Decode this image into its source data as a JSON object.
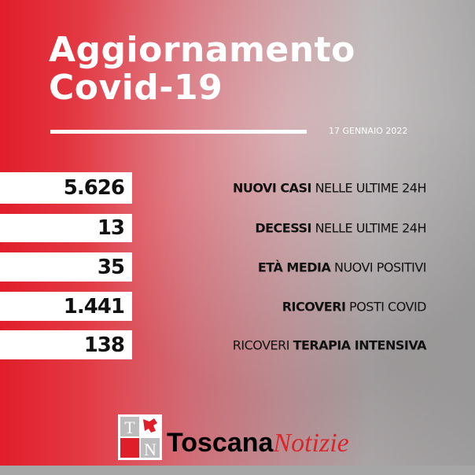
{
  "header": {
    "title_line1": "Aggiornamento",
    "title_line2": "Covid-19",
    "date": "17 GENNAIO 2022"
  },
  "stats": [
    {
      "value": "5.626",
      "bold": "NUOVI CASI",
      "rest": " NELLE ULTIME 24H",
      "bold_first": true
    },
    {
      "value": "13",
      "bold": "DECESSI",
      "rest": " NELLE ULTIME 24H",
      "bold_first": true
    },
    {
      "value": "35",
      "bold": "ETÀ MEDIA",
      "rest": " NUOVI POSITIVI",
      "bold_first": true
    },
    {
      "value": "1.441",
      "bold": "RICOVERI",
      "rest": " POSTI COVID",
      "bold_first": true
    },
    {
      "value": "138",
      "plain": "RICOVERI ",
      "bold": "TERAPIA INTENSIVA",
      "bold_first": false
    }
  ],
  "brand": {
    "part1": "Toscana",
    "part2": "Notizie",
    "logo_letters": "TN"
  },
  "colors": {
    "accent": "#e01e2a",
    "brand_red": "#d8262c"
  }
}
